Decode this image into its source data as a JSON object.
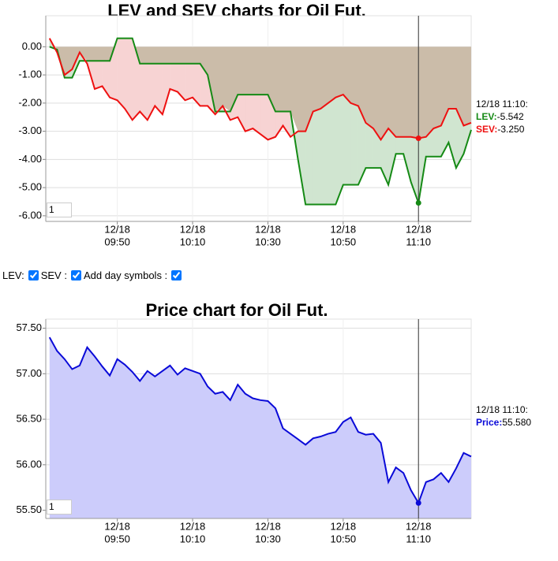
{
  "chart_data": [
    {
      "type": "line",
      "title": "LEV and SEV charts for Oil Fut.",
      "x": [
        "09:32",
        "09:34",
        "09:36",
        "09:38",
        "09:40",
        "09:42",
        "09:44",
        "09:46",
        "09:48",
        "09:50",
        "09:52",
        "09:54",
        "09:56",
        "09:58",
        "10:00",
        "10:02",
        "10:04",
        "10:06",
        "10:08",
        "10:10",
        "10:12",
        "10:14",
        "10:16",
        "10:18",
        "10:20",
        "10:22",
        "10:24",
        "10:26",
        "10:28",
        "10:30",
        "10:32",
        "10:34",
        "10:36",
        "10:38",
        "10:40",
        "10:42",
        "10:44",
        "10:46",
        "10:48",
        "10:50",
        "10:52",
        "10:54",
        "10:56",
        "10:58",
        "11:00",
        "11:02",
        "11:04",
        "11:06",
        "11:08",
        "11:10",
        "11:12",
        "11:14",
        "11:16",
        "11:18",
        "11:20",
        "11:22",
        "11:24"
      ],
      "xlim": [
        "09:31",
        "11:24"
      ],
      "xticks": [
        {
          "value": "09:50",
          "label": [
            "12/18",
            "09:50"
          ]
        },
        {
          "value": "10:10",
          "label": [
            "12/18",
            "10:10"
          ]
        },
        {
          "value": "10:30",
          "label": [
            "12/18",
            "10:30"
          ]
        },
        {
          "value": "10:50",
          "label": [
            "12/18",
            "10:50"
          ]
        },
        {
          "value": "11:10",
          "label": [
            "12/18",
            "11:10"
          ]
        }
      ],
      "ylim": [
        -6.2,
        1.1
      ],
      "yticks": [
        {
          "value": 0,
          "label": "0.00"
        },
        {
          "value": -1,
          "label": "-1.00"
        },
        {
          "value": -2,
          "label": "-2.00"
        },
        {
          "value": -3,
          "label": "-3.00"
        },
        {
          "value": -4,
          "label": "-4.00"
        },
        {
          "value": -5,
          "label": "-5.00"
        },
        {
          "value": -6,
          "label": "-6.00"
        }
      ],
      "grid": true,
      "area_fill": "#cbbca9",
      "series": [
        {
          "name": "LEV",
          "color": "#158a15",
          "fill": "#d0e5d0",
          "values": [
            0,
            -0.1,
            -1.1,
            -1.1,
            -0.5,
            -0.5,
            -0.5,
            -0.5,
            -0.5,
            0.3,
            0.3,
            0.3,
            -0.6,
            -0.6,
            -0.6,
            -0.6,
            -0.6,
            -0.6,
            -0.6,
            -0.6,
            -0.6,
            -1.0,
            -2.3,
            -2.3,
            -2.3,
            -1.7,
            -1.7,
            -1.7,
            -1.7,
            -1.7,
            -2.3,
            -2.3,
            -2.3,
            -4.0,
            -5.6,
            -5.6,
            -5.6,
            -5.6,
            -5.6,
            -4.9,
            -4.9,
            -4.9,
            -4.3,
            -4.3,
            -4.3,
            -4.9,
            -3.8,
            -3.8,
            -4.8,
            -5.542,
            -3.9,
            -3.9,
            -3.9,
            -3.4,
            -4.3,
            -3.8,
            -2.95
          ]
        },
        {
          "name": "SEV",
          "color": "#ee1111",
          "fill": "#f7d3d3",
          "values": [
            0.3,
            -0.2,
            -1.0,
            -0.8,
            -0.2,
            -0.6,
            -1.5,
            -1.4,
            -1.8,
            -1.9,
            -2.2,
            -2.6,
            -2.3,
            -2.6,
            -2.1,
            -2.4,
            -1.5,
            -1.6,
            -1.9,
            -1.8,
            -2.1,
            -2.1,
            -2.4,
            -2.1,
            -2.6,
            -2.5,
            -3.0,
            -2.9,
            -3.1,
            -3.3,
            -3.2,
            -2.8,
            -3.2,
            -3.0,
            -3.0,
            -2.3,
            -2.2,
            -2.0,
            -1.8,
            -1.7,
            -2.0,
            -2.1,
            -2.7,
            -2.9,
            -3.3,
            -2.9,
            -3.2,
            -3.2,
            -3.2,
            -3.25,
            -3.2,
            -2.9,
            -2.8,
            -2.2,
            -2.2,
            -2.8,
            -2.7
          ]
        }
      ],
      "cursor": {
        "x": "11:10",
        "label": "12/18 11:10:",
        "readouts": [
          {
            "name": "LEV:",
            "value": "-5.542"
          },
          {
            "name": "SEV:",
            "value": "-3.250"
          }
        ]
      },
      "input_value": "1"
    },
    {
      "type": "line",
      "title": "Price chart for Oil Fut.",
      "x": [
        "09:32",
        "09:34",
        "09:36",
        "09:38",
        "09:40",
        "09:42",
        "09:44",
        "09:46",
        "09:48",
        "09:50",
        "09:52",
        "09:54",
        "09:56",
        "09:58",
        "10:00",
        "10:02",
        "10:04",
        "10:06",
        "10:08",
        "10:10",
        "10:12",
        "10:14",
        "10:16",
        "10:18",
        "10:20",
        "10:22",
        "10:24",
        "10:26",
        "10:28",
        "10:30",
        "10:32",
        "10:34",
        "10:36",
        "10:38",
        "10:40",
        "10:42",
        "10:44",
        "10:46",
        "10:48",
        "10:50",
        "10:52",
        "10:54",
        "10:56",
        "10:58",
        "11:00",
        "11:02",
        "11:04",
        "11:06",
        "11:08",
        "11:10",
        "11:12",
        "11:14",
        "11:16",
        "11:18",
        "11:20",
        "11:22",
        "11:24"
      ],
      "xlim": [
        "09:31",
        "11:24"
      ],
      "xticks": [
        {
          "value": "09:50",
          "label": [
            "12/18",
            "09:50"
          ]
        },
        {
          "value": "10:10",
          "label": [
            "12/18",
            "10:10"
          ]
        },
        {
          "value": "10:30",
          "label": [
            "12/18",
            "10:30"
          ]
        },
        {
          "value": "10:50",
          "label": [
            "12/18",
            "10:50"
          ]
        },
        {
          "value": "11:10",
          "label": [
            "12/18",
            "11:10"
          ]
        }
      ],
      "ylim": [
        55.41,
        57.6
      ],
      "yticks": [
        {
          "value": 57.5,
          "label": "57.50"
        },
        {
          "value": 57,
          "label": "57.00"
        },
        {
          "value": 56.5,
          "label": "56.50"
        },
        {
          "value": 56,
          "label": "56.00"
        },
        {
          "value": 55.5,
          "label": "55.50"
        }
      ],
      "grid": true,
      "series": [
        {
          "name": "Price",
          "color": "#0a0ad8",
          "fill": "#ccccfb",
          "values": [
            57.4,
            57.25,
            57.16,
            57.05,
            57.09,
            57.29,
            57.19,
            57.08,
            56.98,
            57.16,
            57.1,
            57.02,
            56.92,
            57.03,
            56.97,
            57.03,
            57.09,
            56.99,
            57.06,
            57.03,
            57.0,
            56.86,
            56.78,
            56.8,
            56.71,
            56.88,
            56.78,
            56.73,
            56.71,
            56.7,
            56.62,
            56.4,
            56.34,
            56.28,
            56.22,
            56.29,
            56.31,
            56.34,
            56.36,
            56.47,
            56.52,
            56.36,
            56.33,
            56.34,
            56.24,
            55.81,
            55.97,
            55.91,
            55.72,
            55.58,
            55.81,
            55.84,
            55.91,
            55.81,
            55.96,
            56.13,
            56.09
          ]
        }
      ],
      "cursor": {
        "x": "11:10",
        "label": "12/18 11:10:",
        "readouts": [
          {
            "name": "Price:",
            "value": "55.580"
          }
        ]
      },
      "input_value": "1"
    }
  ],
  "controls": [
    {
      "label": "LEV:",
      "checked": true
    },
    {
      "label": "SEV :",
      "checked": true
    },
    {
      "label": "Add day symbols :",
      "checked": true
    }
  ]
}
